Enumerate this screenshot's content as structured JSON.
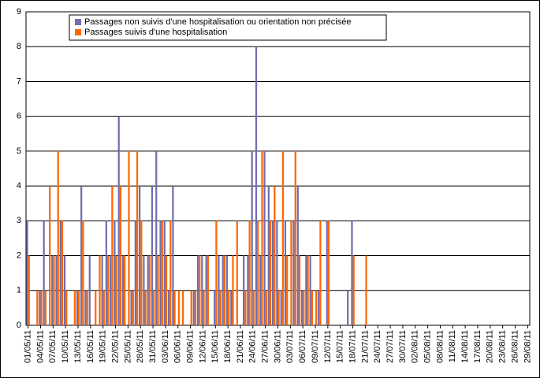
{
  "chart_data": {
    "type": "bar",
    "categories": [
      "01/05/11",
      null,
      null,
      "04/05/11",
      null,
      null,
      "07/05/11",
      null,
      null,
      "10/05/11",
      null,
      null,
      "13/05/11",
      null,
      null,
      "16/05/11",
      null,
      null,
      "19/05/11",
      null,
      null,
      "22/05/11",
      null,
      null,
      "25/05/11",
      null,
      null,
      "28/05/11",
      null,
      null,
      "31/05/11",
      null,
      null,
      "03/06/11",
      null,
      null,
      "06/06/11",
      null,
      null,
      "09/06/11",
      null,
      null,
      "12/06/11",
      null,
      null,
      "15/06/11",
      null,
      null,
      "18/06/11",
      null,
      null,
      "21/06/11",
      null,
      null,
      "24/06/11",
      null,
      null,
      "27/06/11",
      null,
      null,
      "30/06/11",
      null,
      null,
      "03/07/11",
      null,
      null,
      "06/07/11",
      null,
      null,
      "09/07/11",
      null,
      null,
      "12/07/11",
      null,
      null,
      "15/07/11",
      null,
      null,
      "18/07/11",
      null,
      null,
      "21/07/11",
      null,
      null,
      "24/07/11",
      null,
      null,
      "27/07/11",
      null,
      null,
      "30/07/11",
      null,
      null,
      "02/08/11",
      null,
      null,
      "05/08/11",
      null,
      null,
      "08/08/11",
      null,
      null,
      "11/08/11",
      null,
      null,
      "14/08/11",
      null,
      null,
      "17/08/11",
      null,
      null,
      "20/08/11",
      null,
      null,
      "23/08/11",
      null,
      null,
      "26/08/11",
      null,
      null,
      "29/08/11"
    ],
    "series": [
      {
        "name": "Passages non suivis d'une hospitalisation ou orientation non précisée",
        "color": "#6f6fae",
        "values": [
          3,
          0,
          0,
          1,
          3,
          0,
          2,
          2,
          3,
          2,
          0,
          0,
          1,
          4,
          1,
          2,
          0,
          0,
          2,
          3,
          2,
          3,
          6,
          2,
          0,
          1,
          3,
          4,
          2,
          2,
          4,
          5,
          3,
          3,
          1,
          4,
          0,
          0,
          0,
          0,
          1,
          2,
          2,
          2,
          0,
          1,
          2,
          2,
          2,
          1,
          0,
          0,
          2,
          2,
          5,
          8,
          2,
          5,
          4,
          3,
          3,
          1,
          3,
          0,
          3,
          4,
          1,
          2,
          2,
          0,
          1,
          0,
          3,
          0,
          0,
          0,
          0,
          1,
          3,
          0,
          0,
          0,
          0,
          0,
          0,
          0,
          0,
          0,
          0,
          0,
          0,
          0,
          0,
          0,
          0,
          0,
          0,
          0,
          0,
          0,
          0,
          0,
          0,
          0,
          0,
          0,
          0,
          0,
          0,
          0,
          0,
          0,
          0,
          0,
          0,
          0,
          0,
          0,
          0,
          0,
          0
        ]
      },
      {
        "name": "Passages suivis d'une hospitalisation",
        "color": "#ff6600",
        "values": [
          2,
          0,
          1,
          1,
          1,
          4,
          2,
          5,
          3,
          1,
          0,
          1,
          1,
          3,
          1,
          0,
          1,
          2,
          1,
          2,
          4,
          2,
          4,
          2,
          5,
          1,
          5,
          3,
          1,
          2,
          1,
          2,
          3,
          2,
          3,
          1,
          1,
          1,
          0,
          1,
          1,
          2,
          1,
          2,
          0,
          3,
          1,
          2,
          1,
          2,
          3,
          0,
          1,
          3,
          1,
          3,
          5,
          1,
          3,
          4,
          1,
          5,
          2,
          3,
          5,
          2,
          1,
          2,
          1,
          1,
          3,
          0,
          3,
          0,
          0,
          0,
          0,
          0,
          2,
          0,
          0,
          2,
          0,
          0,
          0,
          0,
          0,
          0,
          0,
          0,
          0,
          0,
          0,
          0,
          0,
          0,
          0,
          0,
          0,
          0,
          0,
          0,
          0,
          0,
          0,
          0,
          0,
          0,
          0,
          0,
          0,
          0,
          0,
          0,
          0,
          0,
          0,
          0,
          0,
          0,
          0
        ]
      }
    ],
    "ylim": [
      0,
      9
    ],
    "yticks": [
      0,
      1,
      2,
      3,
      4,
      5,
      6,
      7,
      8,
      9
    ],
    "grid": true
  }
}
